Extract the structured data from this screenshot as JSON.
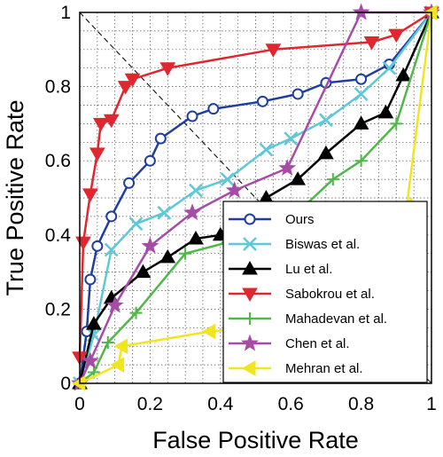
{
  "chart_data": {
    "type": "line",
    "xlabel": "False Positive Rate",
    "ylabel": "True Positive Rate",
    "xlim": [
      0,
      1
    ],
    "ylim": [
      0,
      1
    ],
    "grid": true,
    "legend_position": "bottom-right",
    "chance_line": true,
    "x_ticks": [
      "0",
      "0.2",
      "0.4",
      "0.6",
      "0.8",
      "1"
    ],
    "x_tick_values": [
      0,
      0.2,
      0.4,
      0.6,
      0.8,
      1
    ],
    "y_ticks": [
      "0",
      "0.2",
      "0.4",
      "0.6",
      "0.8",
      "1"
    ],
    "y_tick_values": [
      0,
      0.2,
      0.4,
      0.6,
      0.8,
      1
    ],
    "series": [
      {
        "name": "Ours",
        "color": "#1f3fa0",
        "marker": "circle",
        "x": [
          0,
          0.02,
          0.03,
          0.05,
          0.09,
          0.14,
          0.2,
          0.23,
          0.32,
          0.38,
          0.52,
          0.62,
          0.7,
          0.8,
          0.88,
          1
        ],
        "y": [
          0,
          0.14,
          0.28,
          0.37,
          0.45,
          0.54,
          0.6,
          0.66,
          0.72,
          0.74,
          0.76,
          0.78,
          0.81,
          0.82,
          0.86,
          1
        ]
      },
      {
        "name": "Biswas et al.",
        "color": "#5ec8d8",
        "marker": "x",
        "x": [
          0,
          0.04,
          0.09,
          0.16,
          0.24,
          0.33,
          0.42,
          0.53,
          0.6,
          0.7,
          0.8,
          0.88,
          1
        ],
        "y": [
          0,
          0.13,
          0.36,
          0.43,
          0.46,
          0.52,
          0.55,
          0.63,
          0.66,
          0.71,
          0.78,
          0.85,
          1
        ]
      },
      {
        "name": "Lu et al.",
        "color": "#000000",
        "marker": "triangle-up",
        "x": [
          0,
          0.04,
          0.09,
          0.18,
          0.25,
          0.33,
          0.4,
          0.47,
          0.53,
          0.62,
          0.7,
          0.8,
          0.87,
          0.92,
          1
        ],
        "y": [
          0,
          0.16,
          0.23,
          0.3,
          0.34,
          0.39,
          0.4,
          0.46,
          0.5,
          0.55,
          0.62,
          0.7,
          0.73,
          0.83,
          1
        ]
      },
      {
        "name": "Sabokrou et al.",
        "color": "#e0262e",
        "marker": "triangle-down",
        "x": [
          0,
          0.01,
          0.03,
          0.05,
          0.06,
          0.09,
          0.13,
          0.15,
          0.25,
          0.55,
          0.83,
          0.9,
          1
        ],
        "y": [
          0.07,
          0.38,
          0.51,
          0.62,
          0.7,
          0.71,
          0.8,
          0.82,
          0.85,
          0.9,
          0.92,
          0.94,
          1
        ]
      },
      {
        "name": "Mahadevan et al.",
        "color": "#4fb848",
        "marker": "plus",
        "x": [
          0,
          0.04,
          0.08,
          0.16,
          0.3,
          0.42,
          0.55,
          0.63,
          0.72,
          0.8,
          0.9,
          1
        ],
        "y": [
          0,
          0.03,
          0.11,
          0.19,
          0.35,
          0.38,
          0.42,
          0.47,
          0.55,
          0.6,
          0.7,
          1
        ]
      },
      {
        "name": "Chen et al.",
        "color": "#a64ca6",
        "marker": "star",
        "x": [
          0,
          0.03,
          0.1,
          0.2,
          0.32,
          0.44,
          0.59,
          0.8,
          1
        ],
        "y": [
          0,
          0.06,
          0.21,
          0.37,
          0.46,
          0.52,
          0.58,
          1,
          1
        ]
      },
      {
        "name": "Mehran et al.",
        "color": "#f0e51e",
        "marker": "triangle-left",
        "x": [
          0,
          0.11,
          0.12,
          0.37,
          0.5,
          0.6,
          0.9,
          0.93,
          1
        ],
        "y": [
          0,
          0.05,
          0.1,
          0.14,
          0.15,
          0.16,
          0.2,
          0.48,
          1
        ]
      }
    ]
  }
}
